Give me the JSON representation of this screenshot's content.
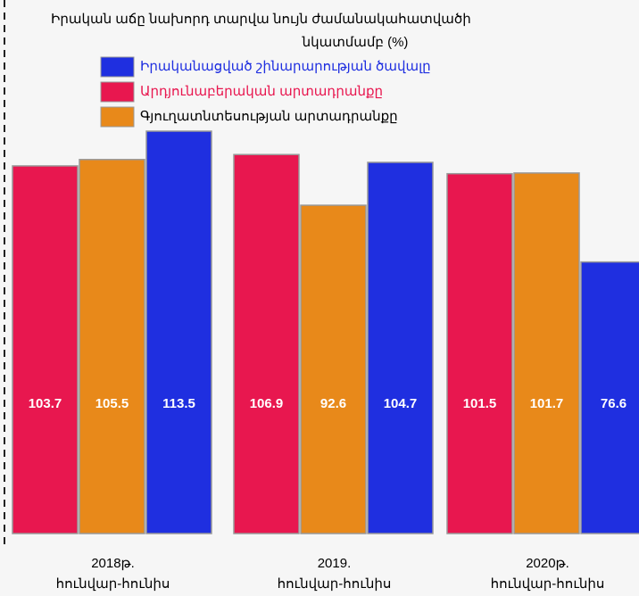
{
  "chart_data": {
    "type": "bar",
    "title": [
      "Իրական աճը նախորդ տարվա նույն ժամանակահատվածի",
      "նկատմամբ (%)"
    ],
    "categories": [
      [
        "2018թ.",
        "հունվար-հունիս"
      ],
      [
        "2019.",
        "հունվար-հունիս"
      ],
      [
        "2020թ.",
        "հունվար-հունիս"
      ]
    ],
    "series": [
      {
        "name": "Արդյունաբերական արտադրանքը",
        "color": "#e8174f",
        "values": [
          103.7,
          106.9,
          101.5
        ]
      },
      {
        "name": "Գյուղատնտեսության արտադրանքը",
        "color": "#e8891a",
        "values": [
          105.5,
          92.6,
          101.7
        ]
      },
      {
        "name": "Իրականացված շինարարության ծավալը",
        "color": "#1f2fe0",
        "values": [
          113.5,
          104.7,
          76.6
        ]
      }
    ],
    "legend_order": [
      2,
      0,
      1
    ],
    "legend_text_colors": [
      "#e8174f",
      "#000000",
      "#1f2fe0"
    ]
  }
}
